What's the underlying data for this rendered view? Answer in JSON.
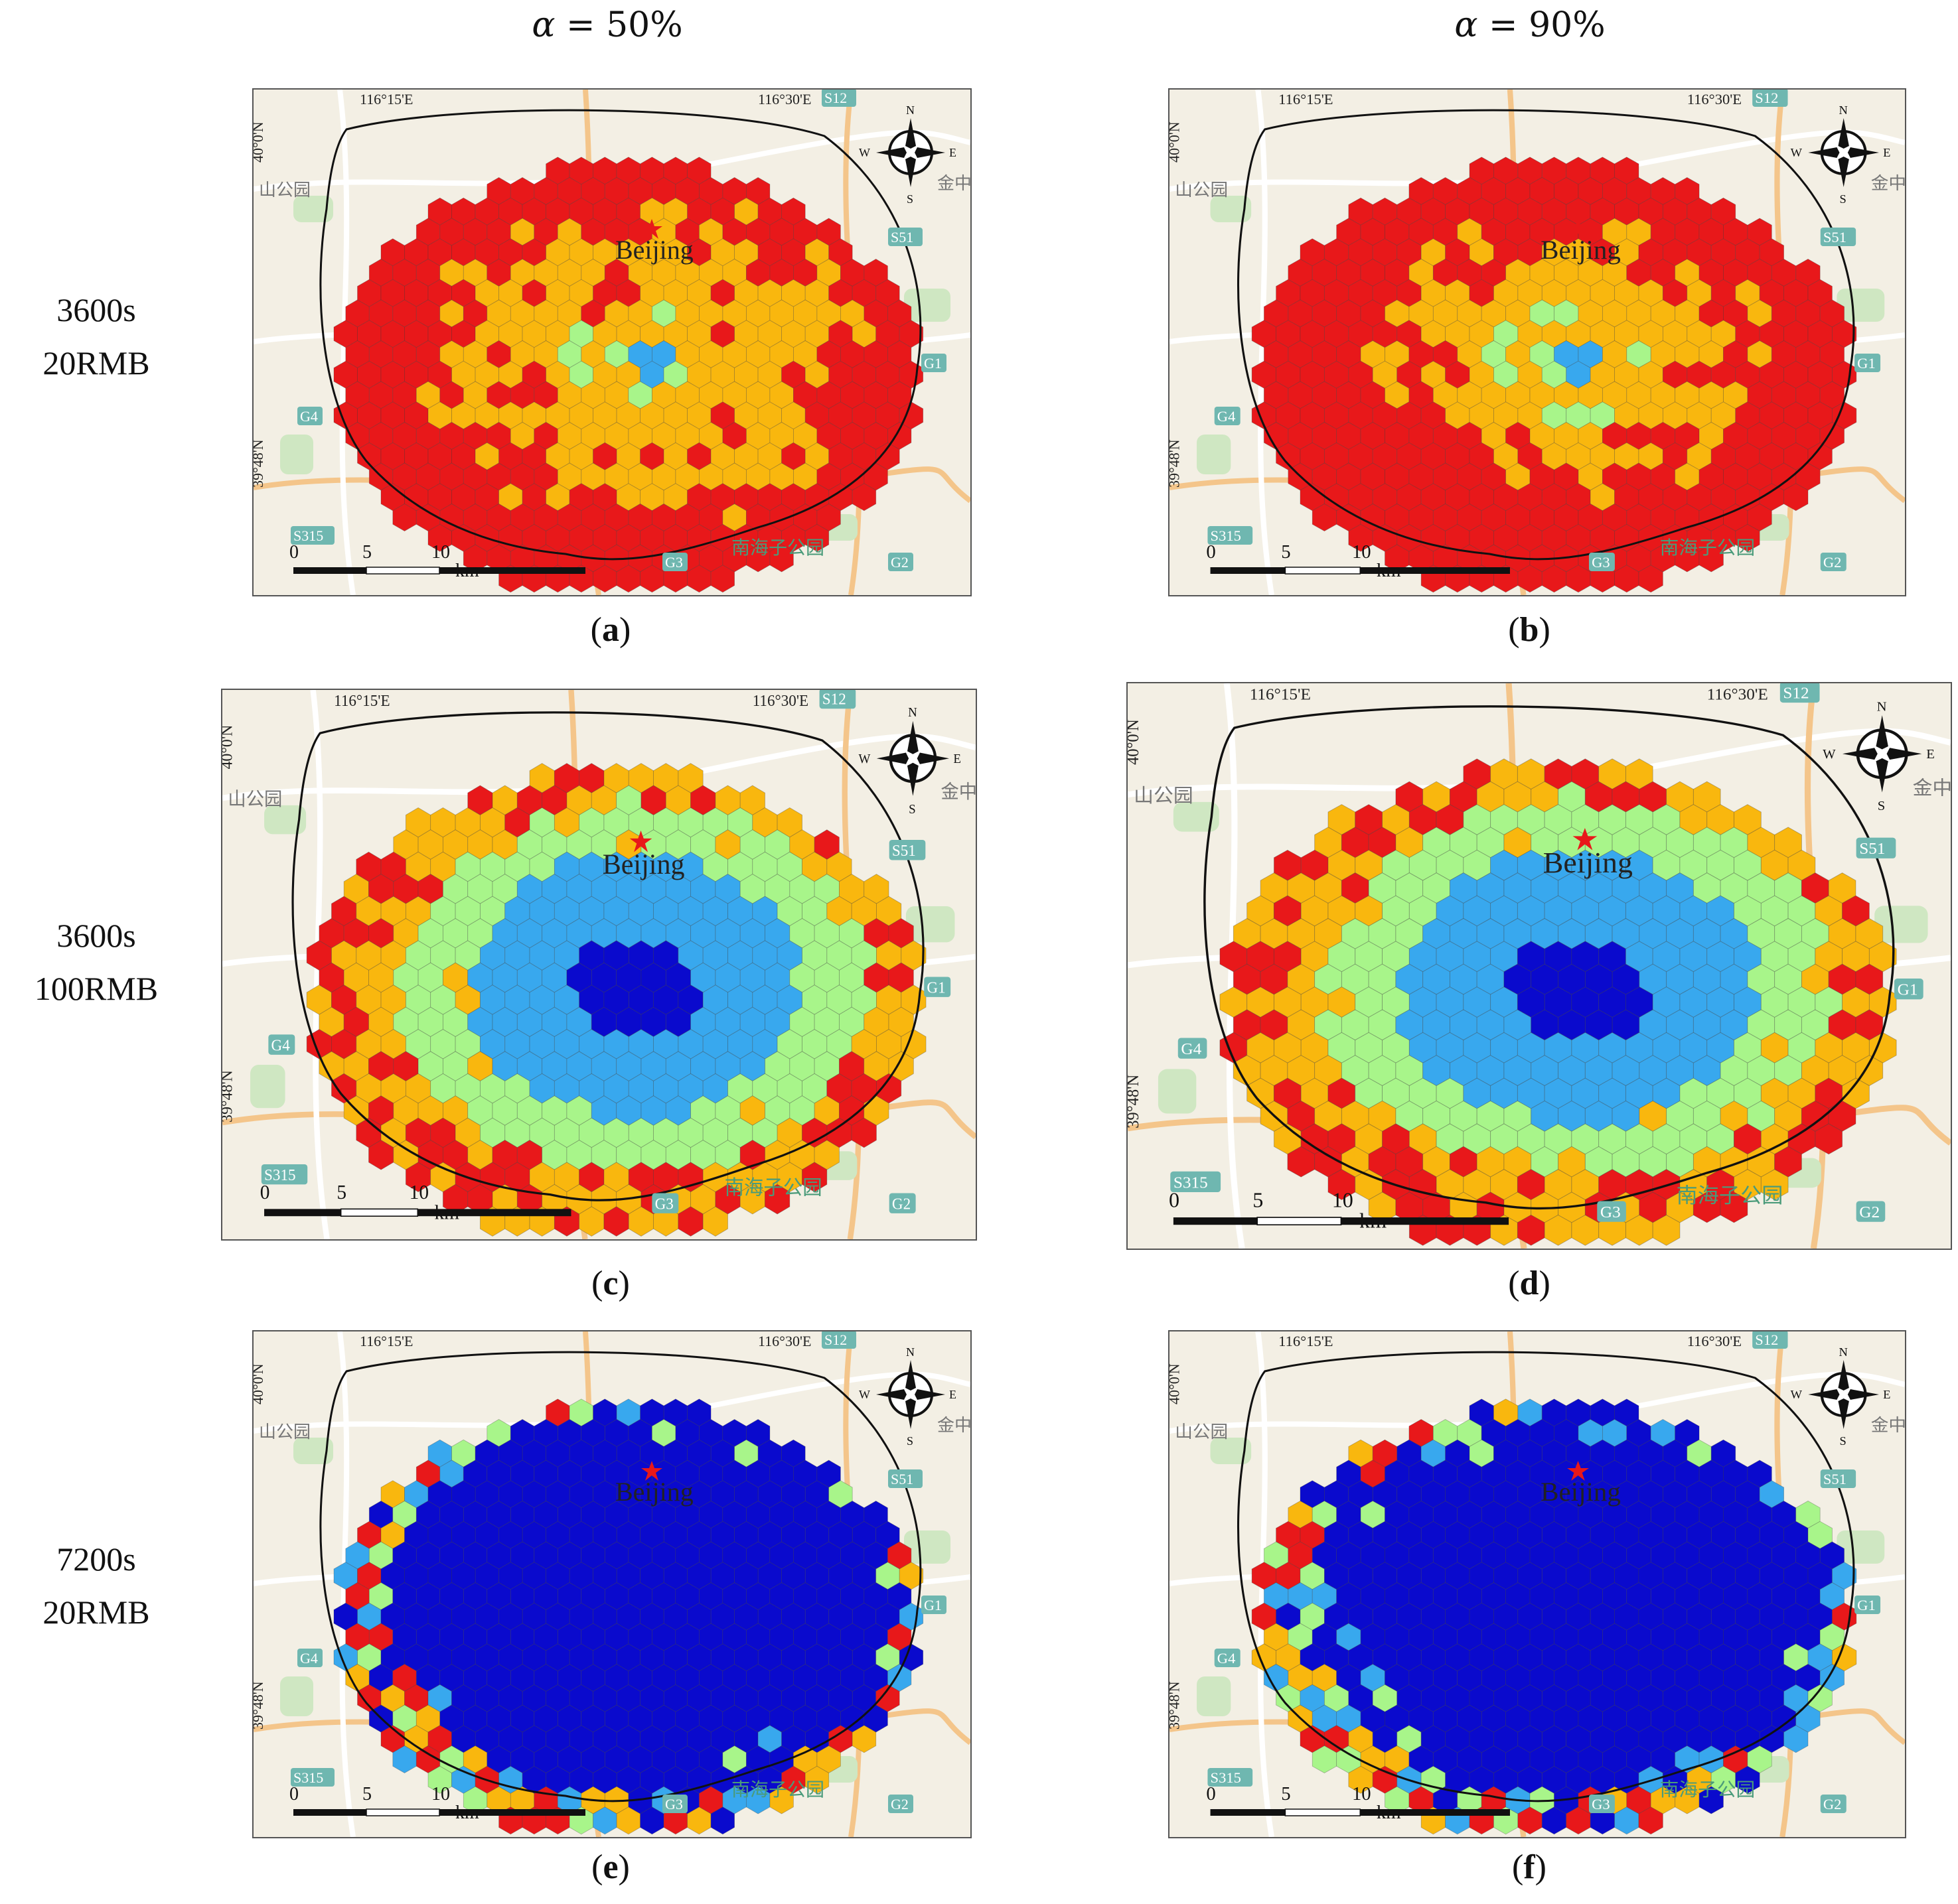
{
  "column_headers": [
    {
      "symbol": "α",
      "text": " = 50%"
    },
    {
      "symbol": "α",
      "text": " = 90%"
    }
  ],
  "row_labels": [
    {
      "line1": "3600s",
      "line2": "20RMB"
    },
    {
      "line1": "3600s",
      "line2": "100RMB"
    },
    {
      "line1": "7200s",
      "line2": "20RMB"
    }
  ],
  "panels": [
    {
      "id": "a",
      "caption_letter": "a",
      "alpha": "50%",
      "time": "3600s",
      "budget": "20RMB"
    },
    {
      "id": "b",
      "caption_letter": "b",
      "alpha": "90%",
      "time": "3600s",
      "budget": "20RMB"
    },
    {
      "id": "c",
      "caption_letter": "c",
      "alpha": "50%",
      "time": "3600s",
      "budget": "100RMB"
    },
    {
      "id": "d",
      "caption_letter": "d",
      "alpha": "90%",
      "time": "3600s",
      "budget": "100RMB"
    },
    {
      "id": "e",
      "caption_letter": "e",
      "alpha": "50%",
      "time": "7200s",
      "budget": "20RMB"
    },
    {
      "id": "f",
      "caption_letter": "f",
      "alpha": "90%",
      "time": "7200s",
      "budget": "20RMB"
    }
  ],
  "map": {
    "city_label": "Beijing",
    "lon_labels": [
      "116°15'E",
      "116°30'E"
    ],
    "lat_labels": [
      "40°0'N",
      "39°48'N"
    ],
    "compass": {
      "n": "N",
      "s": "S",
      "e": "E",
      "w": "W"
    },
    "scale_bar": {
      "ticks": [
        "0",
        "5",
        "10"
      ],
      "unit": "km"
    },
    "basemap_labels": {
      "road_s12": "S12",
      "road_s51": "S51",
      "road_g1": "G1",
      "road_g2": "G2",
      "road_g3": "G3",
      "road_g4": "G4",
      "road_s315": "S315",
      "park": "南海子公园",
      "left_area": "山公园",
      "right_area": "金中"
    }
  },
  "color_scale": {
    "level_1": "#e8181a",
    "level_2": "#f9b70e",
    "level_3": "#a8f58a",
    "level_4": "#38a8ee",
    "level_5": "#0a0acd",
    "boundary": "#111111",
    "basemap": "#f3efe4"
  },
  "panel_summary": {
    "a": {
      "dominant": "level_1",
      "inner": "level_2"
    },
    "b": {
      "dominant": "level_1",
      "inner": "level_2"
    },
    "c": {
      "dominant": "level_3",
      "inner": "level_4",
      "core": "level_5"
    },
    "d": {
      "dominant": "level_3",
      "inner": "level_4",
      "core": "level_5"
    },
    "e": {
      "dominant": "level_5"
    },
    "f": {
      "dominant": "level_5"
    }
  }
}
